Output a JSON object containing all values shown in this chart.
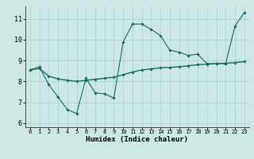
{
  "xlabel": "Humidex (Indice chaleur)",
  "xlim": [
    -0.5,
    23.5
  ],
  "ylim": [
    5.8,
    11.6
  ],
  "yticks": [
    6,
    7,
    8,
    9,
    10,
    11
  ],
  "xticks": [
    0,
    1,
    2,
    3,
    4,
    5,
    6,
    7,
    8,
    9,
    10,
    11,
    12,
    13,
    14,
    15,
    16,
    17,
    18,
    19,
    20,
    21,
    22,
    23
  ],
  "bg_color": "#cce8e4",
  "line_color": "#1a6b5e",
  "grid_color": "#afd4cf",
  "line1_x": [
    0,
    1,
    2,
    3,
    4,
    5,
    6,
    7,
    8,
    9,
    10,
    11,
    12,
    13,
    14,
    15,
    16,
    17,
    18,
    19,
    20,
    21,
    22,
    23
  ],
  "line1_y": [
    8.55,
    8.7,
    7.85,
    7.25,
    6.65,
    6.45,
    8.15,
    7.45,
    7.4,
    7.2,
    9.9,
    10.75,
    10.75,
    10.5,
    10.2,
    9.5,
    9.4,
    9.25,
    9.3,
    8.85,
    8.85,
    8.85,
    10.65,
    11.3
  ],
  "line2_x": [
    0,
    1,
    2,
    3,
    4,
    5,
    6,
    7,
    8,
    9,
    10,
    11,
    12,
    13,
    14,
    15,
    16,
    17,
    18,
    19,
    20,
    21,
    22,
    23
  ],
  "line2_y": [
    8.55,
    8.62,
    8.25,
    8.12,
    8.05,
    8.0,
    8.05,
    8.1,
    8.15,
    8.2,
    8.32,
    8.45,
    8.55,
    8.6,
    8.65,
    8.67,
    8.7,
    8.75,
    8.8,
    8.82,
    8.85,
    8.87,
    8.9,
    8.95
  ]
}
